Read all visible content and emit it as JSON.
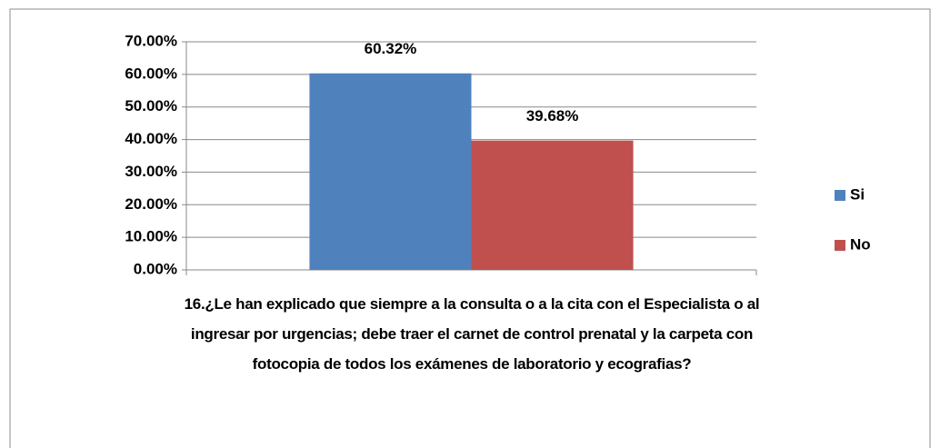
{
  "chart_data": {
    "type": "bar",
    "categories": [
      "16.¿Le han explicado que siempre a la consulta o a la cita con el Especialista o al ingresar por urgencias; debe traer el carnet de control prenatal y la carpeta con fotocopia de todos los exámenes de laboratorio y ecografias?"
    ],
    "series": [
      {
        "name": "Si",
        "color": "#4f81bd",
        "values": [
          60.32
        ],
        "value_labels": [
          "60.32%"
        ]
      },
      {
        "name": "No",
        "color": "#c0504d",
        "values": [
          39.68
        ],
        "value_labels": [
          "39.68%"
        ]
      }
    ],
    "ylim": [
      0,
      70
    ],
    "yticks": [
      {
        "value": 0,
        "label": "0.00%"
      },
      {
        "value": 10,
        "label": "10.00%"
      },
      {
        "value": 20,
        "label": "20.00%"
      },
      {
        "value": 30,
        "label": "30.00%"
      },
      {
        "value": 40,
        "label": "40.00%"
      },
      {
        "value": 50,
        "label": "50.00%"
      },
      {
        "value": 60,
        "label": "60.00%"
      },
      {
        "value": 70,
        "label": "70.00%"
      }
    ],
    "grid": true,
    "legend": "right"
  }
}
